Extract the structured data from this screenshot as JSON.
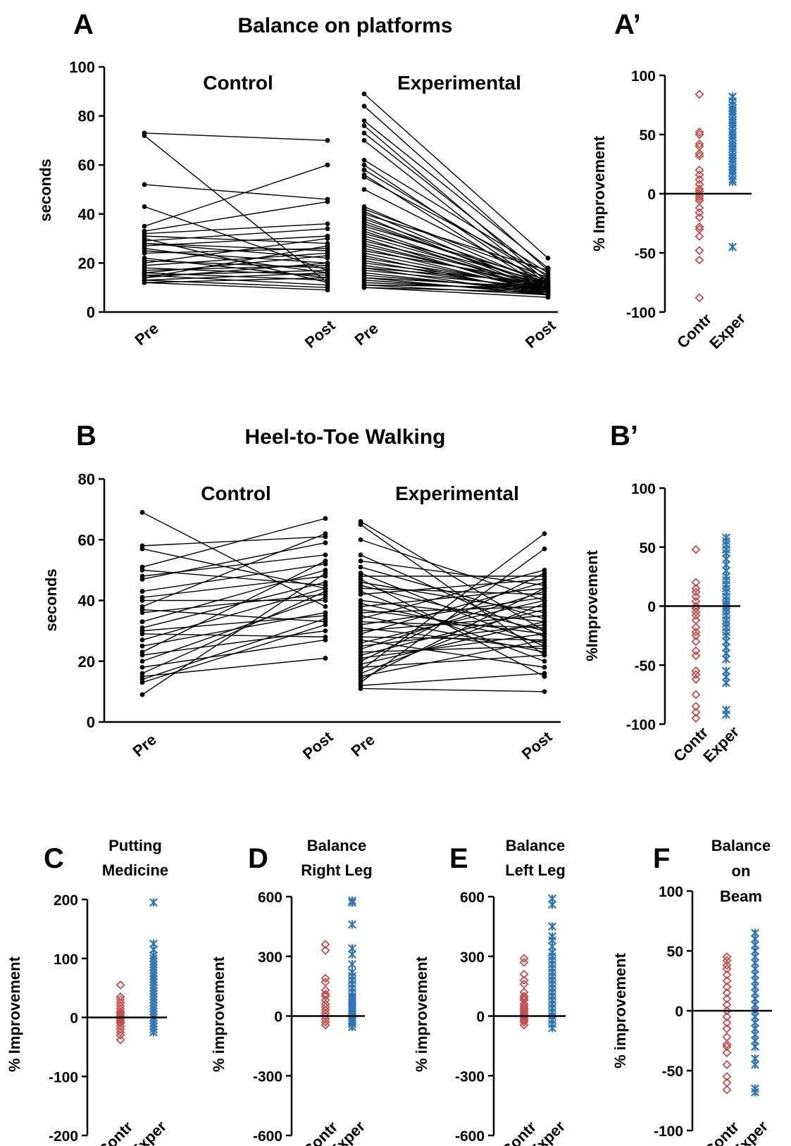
{
  "colors": {
    "control": "#C0504D",
    "experimental": "#2E75B6",
    "line": "#000000"
  },
  "panels": {
    "A": {
      "letter": "A",
      "title": "Balance on platforms"
    },
    "A2": {
      "letter": "A’"
    },
    "B": {
      "letter": "B",
      "title": "Heel-to-Toe Walking"
    },
    "B2": {
      "letter": "B’"
    },
    "C": {
      "letter": "C",
      "title_lines": [
        "Putting",
        "Medicine"
      ]
    },
    "D": {
      "letter": "D",
      "title_lines": [
        "Balance",
        "Right Leg"
      ]
    },
    "E": {
      "letter": "E",
      "title_lines": [
        "Balance",
        "Left Leg"
      ]
    },
    "F": {
      "letter": "F",
      "title_lines": [
        "Balance",
        "on",
        "Beam"
      ]
    }
  },
  "chart_data": [
    {
      "id": "A",
      "type": "line",
      "title": "Balance on platforms",
      "ylabel": "seconds",
      "ylim": [
        0,
        100
      ],
      "yticks": [
        0,
        20,
        40,
        60,
        80,
        100
      ],
      "groups": [
        {
          "label": "Control",
          "x": [
            "Pre",
            "Post"
          ],
          "pairs": [
            [
              72,
              12
            ],
            [
              73,
              70
            ],
            [
              52,
              46
            ],
            [
              43,
              17
            ],
            [
              35,
              60
            ],
            [
              33,
              45
            ],
            [
              32,
              36
            ],
            [
              31,
              28
            ],
            [
              30,
              12
            ],
            [
              29,
              34
            ],
            [
              28,
              22
            ],
            [
              28,
              25
            ],
            [
              27,
              31
            ],
            [
              26,
              16
            ],
            [
              25,
              20
            ],
            [
              24,
              26
            ],
            [
              22,
              14
            ],
            [
              21,
              18
            ],
            [
              20,
              30
            ],
            [
              19,
              24
            ],
            [
              18,
              15
            ],
            [
              17,
              19
            ],
            [
              16,
              13
            ],
            [
              16,
              23
            ],
            [
              15,
              17
            ],
            [
              15,
              11
            ],
            [
              14,
              20
            ],
            [
              14,
              27
            ],
            [
              13,
              10
            ],
            [
              13,
              16
            ],
            [
              12,
              14
            ],
            [
              12,
              9
            ]
          ]
        },
        {
          "label": "Experimental",
          "x": [
            "Pre",
            "Post"
          ],
          "pairs": [
            [
              89,
              22
            ],
            [
              84,
              17
            ],
            [
              78,
              18
            ],
            [
              76,
              12
            ],
            [
              73,
              14
            ],
            [
              70,
              11
            ],
            [
              62,
              16
            ],
            [
              60,
              10
            ],
            [
              58,
              13
            ],
            [
              56,
              9
            ],
            [
              55,
              15
            ],
            [
              50,
              12
            ],
            [
              43,
              11
            ],
            [
              42,
              14
            ],
            [
              41,
              9
            ],
            [
              40,
              17
            ],
            [
              39,
              8
            ],
            [
              38,
              12
            ],
            [
              37,
              10
            ],
            [
              36,
              11
            ],
            [
              35,
              13
            ],
            [
              34,
              9
            ],
            [
              33,
              8
            ],
            [
              32,
              12
            ],
            [
              31,
              10
            ],
            [
              30,
              7
            ],
            [
              29,
              11
            ],
            [
              28,
              9
            ],
            [
              27,
              10
            ],
            [
              26,
              8
            ],
            [
              25,
              12
            ],
            [
              24,
              9
            ],
            [
              23,
              7
            ],
            [
              22,
              10
            ],
            [
              21,
              8
            ],
            [
              20,
              11
            ],
            [
              19,
              9
            ],
            [
              18,
              7
            ],
            [
              18,
              12
            ],
            [
              17,
              10
            ],
            [
              16,
              8
            ],
            [
              15,
              9
            ],
            [
              14,
              7
            ],
            [
              14,
              10
            ],
            [
              13,
              8
            ],
            [
              12,
              9
            ],
            [
              11,
              7
            ],
            [
              11,
              10
            ],
            [
              10,
              8
            ],
            [
              10,
              6
            ]
          ]
        }
      ]
    },
    {
      "id": "A2",
      "type": "scatter",
      "ylabel": "% Improvement",
      "ylim": [
        -100,
        100
      ],
      "yticks": [
        -100,
        -50,
        0,
        50,
        100
      ],
      "categories": [
        "Contr",
        "Exper"
      ],
      "series": [
        {
          "values": [
            84,
            52,
            50,
            42,
            40,
            34,
            32,
            20,
            16,
            12,
            8,
            4,
            2,
            0,
            -2,
            -4,
            -6,
            -12,
            -16,
            -20,
            -28,
            -30,
            -36,
            -48,
            -56,
            -88
          ]
        },
        {
          "values": [
            82,
            78,
            75,
            72,
            70,
            68,
            65,
            62,
            60,
            58,
            55,
            52,
            50,
            48,
            45,
            42,
            40,
            38,
            35,
            32,
            30,
            28,
            25,
            22,
            20,
            18,
            15,
            12,
            10,
            -45
          ]
        }
      ]
    },
    {
      "id": "B",
      "type": "line",
      "title": "Heel-to-Toe Walking",
      "ylabel": "seconds",
      "ylim": [
        0,
        80
      ],
      "yticks": [
        0,
        20,
        40,
        60,
        80
      ],
      "groups": [
        {
          "label": "Control",
          "x": [
            "Pre",
            "Post"
          ],
          "pairs": [
            [
              69,
              38
            ],
            [
              58,
              61
            ],
            [
              57,
              44
            ],
            [
              51,
              67
            ],
            [
              50,
              45
            ],
            [
              48,
              55
            ],
            [
              47,
              59
            ],
            [
              43,
              52
            ],
            [
              41,
              48
            ],
            [
              40,
              40
            ],
            [
              38,
              62
            ],
            [
              37,
              33
            ],
            [
              36,
              42
            ],
            [
              33,
              50
            ],
            [
              31,
              46
            ],
            [
              30,
              35
            ],
            [
              29,
              28
            ],
            [
              27,
              44
            ],
            [
              25,
              36
            ],
            [
              23,
              53
            ],
            [
              22,
              30
            ],
            [
              20,
              41
            ],
            [
              18,
              27
            ],
            [
              16,
              43
            ],
            [
              15,
              21
            ],
            [
              14,
              34
            ],
            [
              13,
              32
            ],
            [
              9,
              49
            ]
          ]
        },
        {
          "label": "Experimental",
          "x": [
            "Pre",
            "Post"
          ],
          "pairs": [
            [
              66,
              30
            ],
            [
              65,
              22
            ],
            [
              60,
              40
            ],
            [
              55,
              28
            ],
            [
              53,
              45
            ],
            [
              51,
              34
            ],
            [
              49,
              25
            ],
            [
              48,
              48
            ],
            [
              47,
              15
            ],
            [
              46,
              36
            ],
            [
              45,
              30
            ],
            [
              44,
              42
            ],
            [
              43,
              20
            ],
            [
              42,
              47
            ],
            [
              40,
              33
            ],
            [
              39,
              26
            ],
            [
              38,
              44
            ],
            [
              37,
              29
            ],
            [
              36,
              38
            ],
            [
              35,
              23
            ],
            [
              34,
              50
            ],
            [
              33,
              31
            ],
            [
              32,
              41
            ],
            [
              31,
              24
            ],
            [
              30,
              35
            ],
            [
              29,
              46
            ],
            [
              28,
              27
            ],
            [
              27,
              18
            ],
            [
              26,
              40
            ],
            [
              25,
              32
            ],
            [
              24,
              43
            ],
            [
              23,
              25
            ],
            [
              22,
              37
            ],
            [
              21,
              29
            ],
            [
              20,
              49
            ],
            [
              19,
              33
            ],
            [
              18,
              22
            ],
            [
              17,
              62
            ],
            [
              16,
              39
            ],
            [
              15,
              27
            ],
            [
              14,
              44
            ],
            [
              13,
              57
            ],
            [
              12,
              16
            ],
            [
              11,
              10
            ]
          ]
        }
      ]
    },
    {
      "id": "B2",
      "type": "scatter",
      "ylabel": "%Improvement",
      "ylim": [
        -100,
        100
      ],
      "yticks": [
        -100,
        -50,
        0,
        50,
        100
      ],
      "categories": [
        "Contr",
        "Exper"
      ],
      "series": [
        {
          "values": [
            48,
            20,
            15,
            12,
            8,
            4,
            0,
            -2,
            -5,
            -8,
            -12,
            -18,
            -22,
            -25,
            -30,
            -38,
            -42,
            -55,
            -58,
            -62,
            -75,
            -85,
            -90,
            -95
          ]
        },
        {
          "values": [
            58,
            55,
            52,
            48,
            45,
            40,
            35,
            30,
            25,
            22,
            18,
            15,
            12,
            8,
            5,
            2,
            0,
            -2,
            -5,
            -8,
            -12,
            -15,
            -18,
            -22,
            -25,
            -30,
            -35,
            -40,
            -45,
            -55,
            -60,
            -65,
            -88,
            -92
          ]
        }
      ]
    },
    {
      "id": "C",
      "type": "scatter",
      "title": "Putting Medicine",
      "ylabel": "% Improvement",
      "ylim": [
        -200,
        200
      ],
      "yticks": [
        -200,
        -100,
        0,
        100,
        200
      ],
      "categories": [
        "Contr",
        "Exper"
      ],
      "series": [
        {
          "values": [
            55,
            35,
            30,
            25,
            20,
            15,
            10,
            8,
            5,
            2,
            0,
            -2,
            -5,
            -8,
            -10,
            -15,
            -20,
            -25,
            -30,
            -38
          ]
        },
        {
          "values": [
            195,
            125,
            115,
            105,
            100,
            95,
            90,
            85,
            80,
            75,
            70,
            65,
            60,
            55,
            50,
            45,
            40,
            35,
            30,
            25,
            20,
            15,
            10,
            5,
            0,
            -5,
            -10,
            -15,
            -20,
            -25
          ]
        }
      ]
    },
    {
      "id": "D",
      "type": "scatter",
      "title": "Balance Right Leg",
      "ylabel": "% improvement",
      "ylim": [
        -600,
        600
      ],
      "yticks": [
        -600,
        -300,
        0,
        300,
        600
      ],
      "categories": [
        "Contr",
        "Exper"
      ],
      "series": [
        {
          "values": [
            360,
            330,
            190,
            170,
            130,
            110,
            100,
            80,
            60,
            45,
            30,
            15,
            0,
            -15,
            -30,
            -45
          ]
        },
        {
          "values": [
            580,
            570,
            460,
            340,
            310,
            260,
            220,
            200,
            180,
            160,
            140,
            120,
            100,
            90,
            80,
            70,
            60,
            50,
            40,
            30,
            20,
            10,
            0,
            -10,
            -20,
            -30,
            -40,
            -55
          ]
        }
      ]
    },
    {
      "id": "E",
      "type": "scatter",
      "title": "Balance Left Leg",
      "ylabel": "% improvement",
      "ylim": [
        -600,
        600
      ],
      "yticks": [
        -600,
        -300,
        0,
        300,
        600
      ],
      "categories": [
        "Contr",
        "Exper"
      ],
      "series": [
        {
          "values": [
            290,
            270,
            210,
            180,
            160,
            120,
            100,
            90,
            80,
            60,
            50,
            40,
            30,
            20,
            10,
            0,
            -10,
            -20,
            -30,
            -45
          ]
        },
        {
          "values": [
            590,
            560,
            450,
            400,
            380,
            350,
            320,
            300,
            280,
            260,
            240,
            220,
            200,
            180,
            160,
            140,
            120,
            100,
            80,
            60,
            40,
            20,
            0,
            -20,
            -40,
            -60
          ]
        }
      ]
    },
    {
      "id": "F",
      "type": "scatter",
      "title": "Balance on Beam",
      "ylabel": "% improvement",
      "ylim": [
        -100,
        100
      ],
      "yticks": [
        -100,
        -50,
        0,
        50,
        100
      ],
      "categories": [
        "Contr",
        "Exper"
      ],
      "series": [
        {
          "values": [
            45,
            42,
            38,
            35,
            30,
            25,
            20,
            15,
            10,
            5,
            0,
            -5,
            -10,
            -15,
            -22,
            -28,
            -30,
            -35,
            -45,
            -55,
            -60,
            -66
          ]
        },
        {
          "values": [
            65,
            60,
            55,
            50,
            45,
            40,
            35,
            30,
            25,
            20,
            15,
            10,
            5,
            0,
            -5,
            -10,
            -15,
            -20,
            -25,
            -30,
            -40,
            -45,
            -65,
            -68
          ]
        }
      ]
    }
  ]
}
